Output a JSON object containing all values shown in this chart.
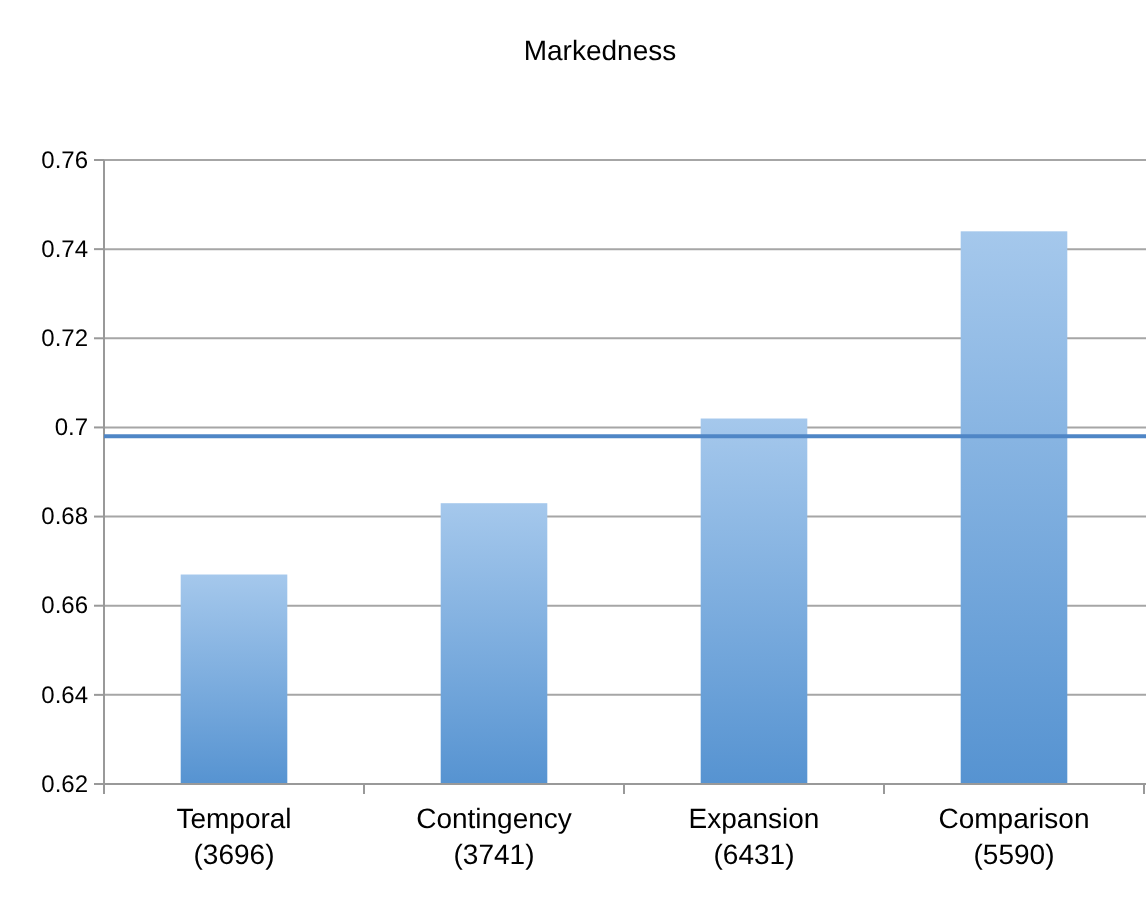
{
  "chart_data": {
    "type": "bar",
    "title": "Markedness",
    "categories": [
      "Temporal\n(3696)",
      "Contingency\n(3741)",
      "Expansion\n(6431)",
      "Comparison\n(5590)"
    ],
    "values": [
      0.667,
      0.683,
      0.702,
      0.744
    ],
    "color": "#5b9bdc",
    "ylim": [
      0.62,
      0.76
    ],
    "yticks": [
      0.62,
      0.64,
      0.66,
      0.68,
      {
        "value": 0.7,
        "label": "0.7"
      },
      0.72,
      0.74,
      0.76
    ],
    "grid": "y",
    "ref_lines": [
      {
        "axis": "y",
        "value": 0.698,
        "color": "#4f86c6"
      }
    ]
  }
}
